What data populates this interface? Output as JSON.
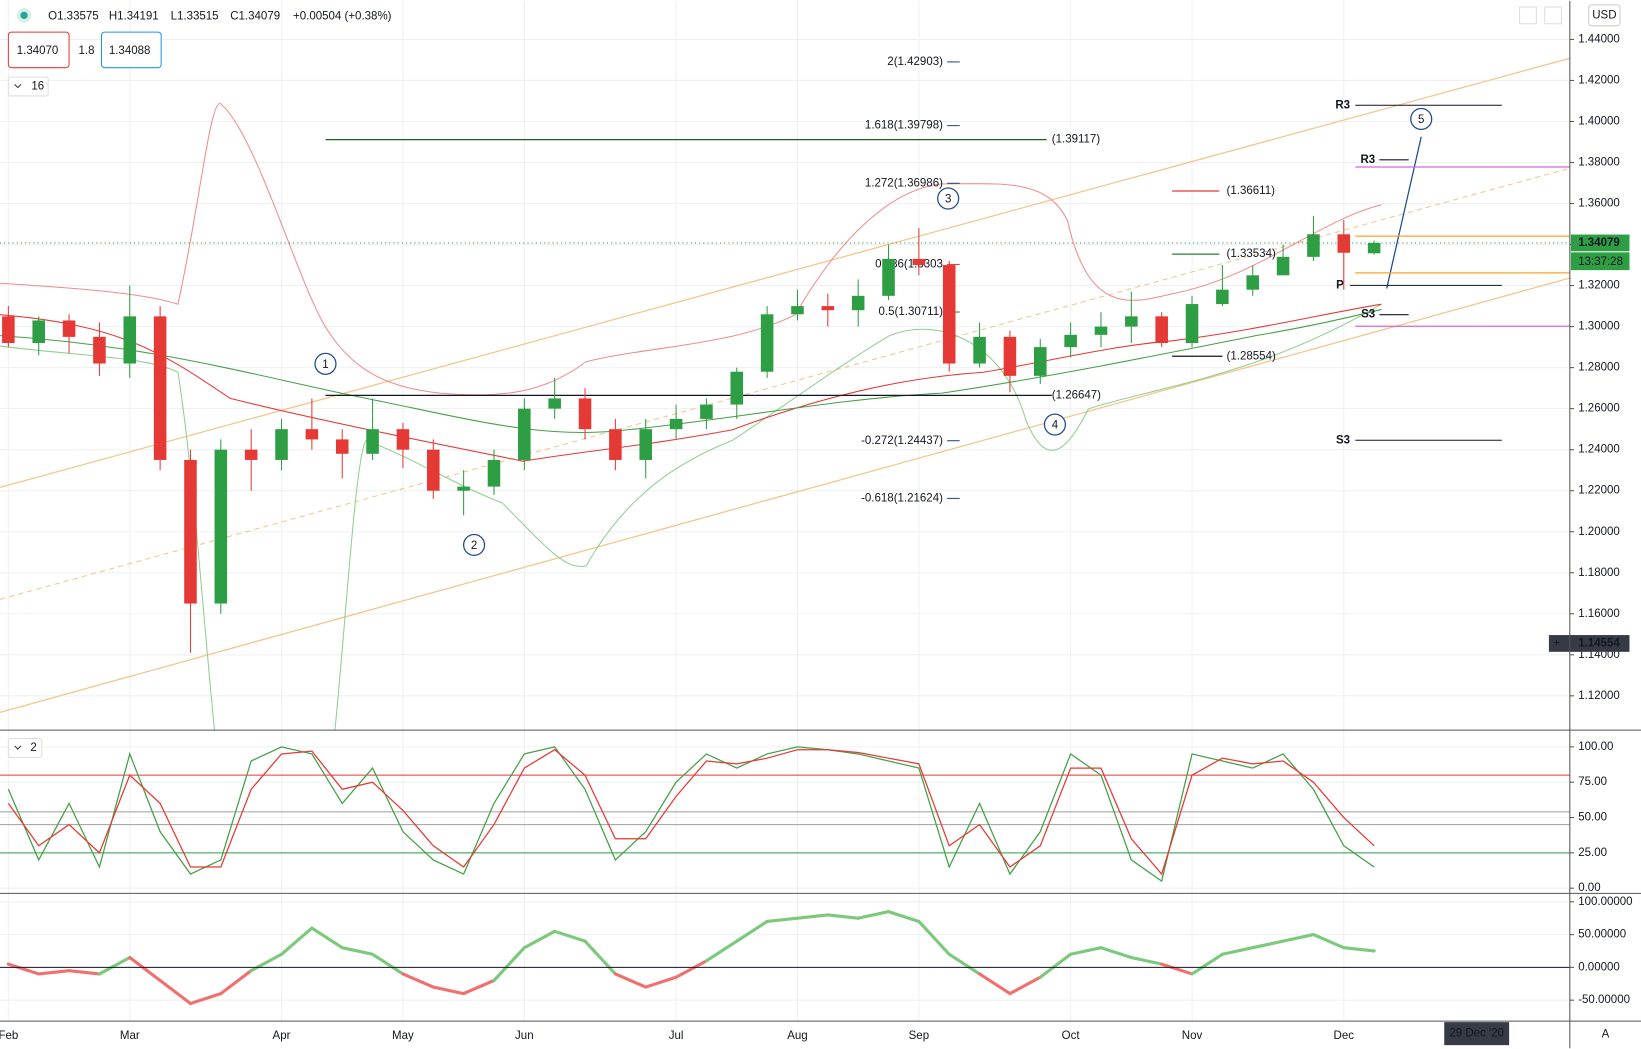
{
  "header": {
    "ohlc": [
      "O1.33575",
      "H1.34191",
      "L1.33515",
      "C1.34079"
    ],
    "change": "+0.00504 (+0.38%)",
    "bid": "1.34070",
    "spread": "1.8",
    "ask": "1.34088",
    "indicators": "16",
    "currency": "USD",
    "auto": "A"
  },
  "chart_data": [
    {
      "type": "candlestick",
      "categories": [
        "Feb",
        null,
        null,
        null,
        "Mar",
        null,
        null,
        null,
        null,
        "Apr",
        null,
        null,
        null,
        "May",
        null,
        null,
        null,
        "Jun",
        null,
        null,
        null,
        null,
        "Jul",
        null,
        null,
        null,
        "Aug",
        null,
        null,
        null,
        "Sep",
        null,
        null,
        null,
        null,
        "Oct",
        null,
        null,
        null,
        "Nov",
        null,
        null,
        null,
        null,
        "Dec",
        null
      ],
      "open": [
        1.305,
        1.292,
        1.303,
        1.295,
        1.282,
        1.305,
        1.235,
        1.165,
        1.24,
        1.235,
        1.25,
        1.245,
        1.238,
        1.25,
        1.24,
        1.22,
        1.222,
        1.235,
        1.26,
        1.265,
        1.25,
        1.235,
        1.25,
        1.255,
        1.262,
        1.278,
        1.306,
        1.31,
        1.308,
        1.315,
        1.333,
        1.33,
        1.282,
        1.295,
        1.276,
        1.29,
        1.296,
        1.3,
        1.305,
        1.292,
        1.311,
        1.318,
        1.325,
        1.334,
        1.345,
        1.33575
      ],
      "high": [
        1.31,
        1.305,
        1.306,
        1.302,
        1.32,
        1.31,
        1.24,
        1.245,
        1.25,
        1.255,
        1.265,
        1.25,
        1.265,
        1.253,
        1.245,
        1.23,
        1.24,
        1.265,
        1.275,
        1.27,
        1.255,
        1.255,
        1.262,
        1.265,
        1.28,
        1.31,
        1.318,
        1.316,
        1.323,
        1.34,
        1.348,
        1.332,
        1.302,
        1.298,
        1.294,
        1.302,
        1.307,
        1.317,
        1.307,
        1.315,
        1.33,
        1.33,
        1.34,
        1.354,
        1.352,
        1.34191
      ],
      "low": [
        1.29,
        1.286,
        1.287,
        1.276,
        1.275,
        1.23,
        1.141,
        1.16,
        1.22,
        1.23,
        1.24,
        1.226,
        1.235,
        1.231,
        1.216,
        1.208,
        1.218,
        1.23,
        1.255,
        1.245,
        1.23,
        1.226,
        1.245,
        1.25,
        1.255,
        1.275,
        1.303,
        1.3,
        1.3,
        1.313,
        1.325,
        1.278,
        1.28,
        1.268,
        1.272,
        1.285,
        1.29,
        1.292,
        1.29,
        1.29,
        1.31,
        1.315,
        1.326,
        1.332,
        1.318,
        1.33515
      ],
      "close": [
        1.292,
        1.303,
        1.295,
        1.282,
        1.305,
        1.235,
        1.165,
        1.24,
        1.235,
        1.25,
        1.245,
        1.238,
        1.25,
        1.24,
        1.22,
        1.222,
        1.235,
        1.26,
        1.265,
        1.25,
        1.235,
        1.25,
        1.255,
        1.262,
        1.278,
        1.306,
        1.31,
        1.308,
        1.315,
        1.333,
        1.33,
        1.282,
        1.295,
        1.276,
        1.29,
        1.296,
        1.3,
        1.305,
        1.292,
        1.311,
        1.318,
        1.325,
        1.334,
        1.345,
        1.336,
        1.34079
      ],
      "up_color": "#2e9e44",
      "down_color": "#e53935",
      "ylim": [
        1.10327,
        1.45888
      ],
      "yticks": [
        {
          "value": 1.12,
          "label": "1.12000"
        },
        {
          "value": 1.14,
          "label": "1.14000"
        },
        {
          "value": 1.16,
          "label": "1.16000"
        },
        {
          "value": 1.18,
          "label": "1.18000"
        },
        {
          "value": 1.2,
          "label": "1.20000"
        },
        {
          "value": 1.22,
          "label": "1.22000"
        },
        {
          "value": 1.24,
          "label": "1.24000"
        },
        {
          "value": 1.26,
          "label": "1.26000"
        },
        {
          "value": 1.28,
          "label": "1.28000"
        },
        {
          "value": 1.3,
          "label": "1.30000"
        },
        {
          "value": 1.32,
          "label": "1.32000"
        },
        {
          "value": 1.34,
          "label": "1.34000"
        },
        {
          "value": 1.36,
          "label": "1.36000"
        },
        {
          "value": 1.38,
          "label": "1.38000"
        },
        {
          "value": 1.4,
          "label": "1.40000"
        },
        {
          "value": 1.42,
          "label": "1.42000"
        },
        {
          "value": 1.44,
          "label": "1.44000"
        }
      ],
      "grid": true,
      "last_price": 1.34079,
      "countdown": "13:37:28",
      "crosshair_price": 1.14554,
      "crosshair_date": "29 Dec '20",
      "fib": [
        {
          "label": "2(1.42903)",
          "value": 1.42903,
          "color": "#1e4a8c"
        },
        {
          "label": "1.618(1.39798)",
          "value": 1.39798,
          "color": "#1e4a8c"
        },
        {
          "label": "1.272(1.36986)",
          "value": 1.36986,
          "color": "#1e4a8c"
        },
        {
          "label": "0.786(1.3303",
          "value": 1.3303,
          "color": "#e53935"
        },
        {
          "label": "0.5(1.30711)",
          "value": 1.30711,
          "color": "#2e7d32"
        },
        {
          "label": "-0.272(1.24437)",
          "value": 1.24437,
          "color": "#1e4a8c"
        },
        {
          "label": "-0.618(1.21624)",
          "value": 1.21624,
          "color": "#1e4a8c"
        }
      ],
      "levels": [
        {
          "label": "(1.39117)",
          "value": 1.39117,
          "color": "#1b5e20"
        },
        {
          "label": "(1.36611)",
          "value": 1.36611,
          "color": "#e53935"
        },
        {
          "label": "(1.33534)",
          "value": 1.33534,
          "color": "#2e7d32"
        },
        {
          "label": "(1.28554)",
          "value": 1.28554,
          "color": "#131722"
        },
        {
          "label": "(1.26647)",
          "value": 1.26647,
          "color": "#131722"
        }
      ],
      "pivots": [
        {
          "label": "R3",
          "value": 1.4079
        },
        {
          "label": "R3",
          "value": 1.3813
        },
        {
          "label": "P",
          "value": 1.3201
        },
        {
          "label": "S3",
          "value": 1.3058
        },
        {
          "label": "S3",
          "value": 1.2446
        }
      ],
      "hlines": [
        {
          "value": 1.3778,
          "color": "#d966d9"
        },
        {
          "value": 1.3002,
          "color": "#d966d9"
        },
        {
          "value": 1.3441,
          "color": "#f5a623"
        },
        {
          "value": 1.3262,
          "color": "#f5a623"
        }
      ],
      "waves": [
        "1",
        "2",
        "3",
        "4",
        "5"
      ]
    },
    {
      "type": "line",
      "legend": "2",
      "ylim": [
        -3.7,
        111.1
      ],
      "yticks": [
        {
          "value": 0,
          "label": "0.00"
        },
        {
          "value": 25,
          "label": "25.00"
        },
        {
          "value": 50,
          "label": "50.00"
        },
        {
          "value": 75,
          "label": "75.00"
        },
        {
          "value": 100,
          "label": "100.00"
        }
      ],
      "bands": [
        {
          "value": 80,
          "color": "#e53935"
        },
        {
          "value": 54,
          "color": "#9e9e9e"
        },
        {
          "value": 45,
          "color": "#9e9e9e"
        },
        {
          "value": 25,
          "color": "#2e9e44"
        }
      ],
      "series": [
        {
          "color": "#43a047",
          "values": [
            70,
            20,
            60,
            15,
            95,
            40,
            10,
            20,
            90,
            100,
            95,
            60,
            85,
            40,
            20,
            10,
            60,
            95,
            100,
            70,
            20,
            40,
            75,
            95,
            85,
            95,
            100,
            98,
            95,
            90,
            85,
            15,
            60,
            10,
            40,
            95,
            80,
            20,
            5,
            95,
            90,
            85,
            95,
            70,
            30,
            15
          ]
        },
        {
          "color": "#e53935",
          "values": [
            60,
            30,
            45,
            25,
            80,
            60,
            15,
            15,
            70,
            95,
            97,
            70,
            75,
            55,
            30,
            15,
            45,
            85,
            98,
            80,
            35,
            35,
            65,
            90,
            88,
            92,
            98,
            98,
            96,
            92,
            88,
            30,
            45,
            15,
            30,
            85,
            85,
            35,
            10,
            80,
            92,
            88,
            90,
            75,
            50,
            30
          ]
        }
      ]
    },
    {
      "type": "line",
      "ylim": [
        -81.9,
        112.8
      ],
      "yticks": [
        {
          "value": 100,
          "label": "100.00000"
        },
        {
          "value": 50,
          "label": "50.00000"
        },
        {
          "value": 0,
          "label": "0.00000"
        },
        {
          "value": -50,
          "label": "-50.00000"
        }
      ],
      "positive_color": "#7cc97c",
      "negative_color": "#f07070",
      "values": [
        5,
        -10,
        -5,
        -10,
        15,
        -20,
        -55,
        -40,
        -5,
        20,
        60,
        30,
        20,
        -10,
        -30,
        -40,
        -20,
        30,
        55,
        40,
        -10,
        -30,
        -15,
        10,
        40,
        70,
        75,
        80,
        75,
        85,
        70,
        20,
        -10,
        -40,
        -15,
        20,
        30,
        15,
        5,
        -10,
        20,
        30,
        40,
        50,
        30,
        25
      ]
    }
  ]
}
